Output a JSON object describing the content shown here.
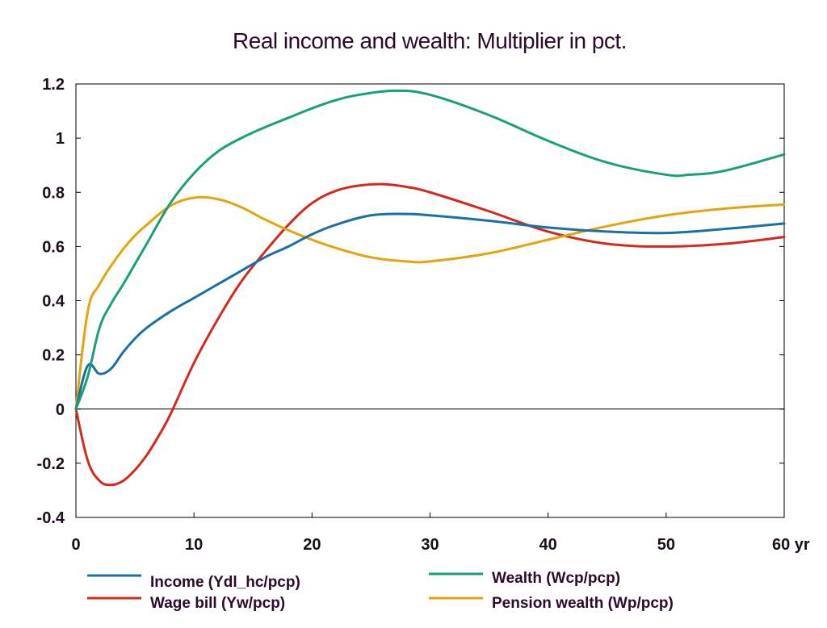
{
  "chart_data": {
    "type": "line",
    "title": "Real income and wealth: Multiplier in pct.",
    "x_unit_label": "yr",
    "xlim": [
      0,
      60
    ],
    "ylim": [
      -0.4,
      1.2
    ],
    "x_ticks": [
      0,
      10,
      20,
      30,
      40,
      50,
      60
    ],
    "x_tick_labels": [
      "0",
      "10",
      "20",
      "30",
      "40",
      "50",
      "60 yr"
    ],
    "y_ticks": [
      -0.4,
      -0.2,
      0,
      0.2,
      0.4,
      0.6,
      0.8,
      1,
      1.2
    ],
    "y_tick_labels": [
      "-0.4",
      "-0.2",
      "0",
      "0.2",
      "0.4",
      "0.6",
      "0.8",
      "1",
      "1.2"
    ],
    "zero_line": true,
    "grid": false,
    "legend_placement": "bottom",
    "series": [
      {
        "name": "Income (Ydl_hc/pcp)",
        "color": "#1a6fa8",
        "x": [
          0,
          1,
          2,
          3,
          4,
          5,
          6,
          8,
          10,
          12,
          14,
          16,
          18,
          20,
          22,
          25,
          28,
          30,
          35,
          40,
          45,
          50,
          55,
          60
        ],
        "values": [
          0,
          0.16,
          0.13,
          0.15,
          0.21,
          0.26,
          0.3,
          0.36,
          0.41,
          0.46,
          0.51,
          0.56,
          0.6,
          0.645,
          0.68,
          0.715,
          0.72,
          0.715,
          0.695,
          0.67,
          0.655,
          0.65,
          0.665,
          0.685
        ]
      },
      {
        "name": "Wage bill (Yw/pcp)",
        "color": "#d42a1e",
        "x": [
          0,
          1,
          2,
          3,
          4,
          5,
          6,
          7,
          8,
          10,
          12,
          14,
          16,
          18,
          20,
          22,
          24,
          26,
          28,
          30,
          35,
          40,
          45,
          50,
          55,
          60
        ],
        "values": [
          0,
          -0.19,
          -0.265,
          -0.28,
          -0.265,
          -0.225,
          -0.17,
          -0.1,
          -0.02,
          0.17,
          0.33,
          0.47,
          0.58,
          0.68,
          0.76,
          0.805,
          0.825,
          0.83,
          0.82,
          0.8,
          0.73,
          0.655,
          0.61,
          0.6,
          0.61,
          0.635
        ]
      },
      {
        "name": "Wealth (Wcp/pcp)",
        "color": "#17a07a",
        "x": [
          0,
          1,
          2,
          3,
          4,
          5,
          6,
          8,
          10,
          12,
          14,
          16,
          18,
          20,
          22,
          24,
          27,
          30,
          35,
          40,
          45,
          50,
          52,
          55,
          60
        ],
        "values": [
          0,
          0.12,
          0.3,
          0.39,
          0.46,
          0.535,
          0.61,
          0.76,
          0.87,
          0.95,
          1.0,
          1.04,
          1.075,
          1.11,
          1.14,
          1.16,
          1.175,
          1.16,
          1.085,
          0.99,
          0.91,
          0.865,
          0.865,
          0.88,
          0.94
        ]
      },
      {
        "name": "Pension wealth (Wp/pcp)",
        "color": "#e5a30e",
        "x": [
          0,
          1,
          2,
          3,
          4,
          5,
          6,
          8,
          10,
          12,
          14,
          16,
          18,
          20,
          22,
          25,
          28,
          30,
          35,
          40,
          45,
          50,
          55,
          60
        ],
        "values": [
          0,
          0.36,
          0.46,
          0.53,
          0.59,
          0.64,
          0.68,
          0.75,
          0.78,
          0.775,
          0.745,
          0.7,
          0.66,
          0.625,
          0.595,
          0.56,
          0.545,
          0.545,
          0.575,
          0.625,
          0.675,
          0.715,
          0.74,
          0.755
        ]
      }
    ]
  }
}
